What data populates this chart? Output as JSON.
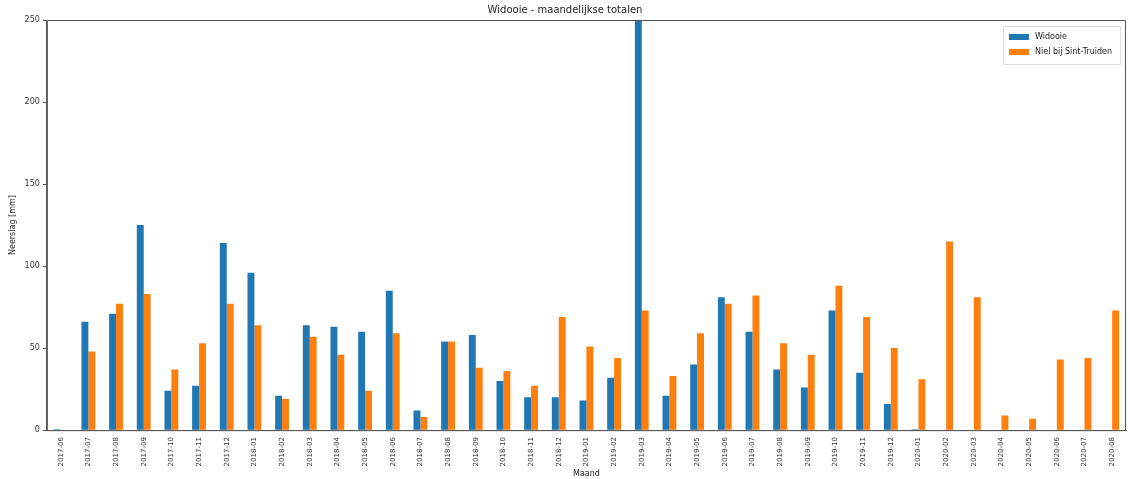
{
  "chart_data": {
    "type": "bar",
    "title": "Widooie - maandelijkse totalen",
    "xlabel": "Maand",
    "ylabel": "Neerslag [mm]",
    "categories": [
      "2017-06",
      "2017-07",
      "2017-08",
      "2017-09",
      "2017-10",
      "2017-11",
      "2017-12",
      "2018-01",
      "2018-02",
      "2018-03",
      "2018-04",
      "2018-05",
      "2018-06",
      "2018-07",
      "2018-08",
      "2018-09",
      "2018-10",
      "2018-11",
      "2018-12",
      "2019-01",
      "2019-02",
      "2019-03",
      "2019-04",
      "2019-05",
      "2019-06",
      "2019-07",
      "2019-08",
      "2019-09",
      "2019-10",
      "2019-11",
      "2019-12",
      "2020-01",
      "2020-02",
      "2020-03",
      "2020-04",
      "2020-05",
      "2020-06",
      "2020-07",
      "2020-08"
    ],
    "series": [
      {
        "name": "Widooie",
        "color": "#1f77b4",
        "values": [
          0.5,
          66,
          71,
          125,
          24,
          27,
          114,
          96,
          21,
          64,
          63,
          60,
          85,
          12,
          54,
          58,
          30,
          20,
          20,
          18,
          32,
          250,
          21,
          40,
          81,
          60,
          37,
          26,
          73,
          35,
          16,
          0.5,
          null,
          null,
          null,
          null,
          null,
          null,
          null
        ]
      },
      {
        "name": "Niel bij Sint-Truiden",
        "color": "#ff7f0e",
        "values": [
          null,
          48,
          77,
          83,
          37,
          53,
          77,
          64,
          19,
          57,
          46,
          24,
          59,
          8,
          54,
          38,
          36,
          27,
          69,
          51,
          44,
          73,
          33,
          59,
          77,
          82,
          53,
          46,
          88,
          69,
          50,
          31,
          115,
          81,
          9,
          7,
          43,
          44,
          73
        ]
      }
    ],
    "ylim": [
      0,
      250
    ],
    "yticks": [
      0,
      50,
      100,
      150,
      200,
      250
    ],
    "grid": false,
    "legend": "top right"
  }
}
